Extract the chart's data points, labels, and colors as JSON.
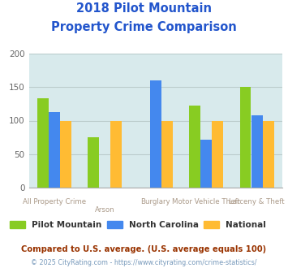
{
  "title_line1": "2018 Pilot Mountain",
  "title_line2": "Property Crime Comparison",
  "categories": [
    "All Property Crime",
    "Arson",
    "Burglary",
    "Motor Vehicle Theft",
    "Larceny & Theft"
  ],
  "pilot_mountain": [
    133,
    75,
    null,
    123,
    150
  ],
  "north_carolina": [
    113,
    null,
    160,
    72,
    108
  ],
  "national": [
    100,
    100,
    100,
    100,
    100
  ],
  "bar_colors": {
    "pilot_mountain": "#88cc22",
    "north_carolina": "#4488ee",
    "national": "#ffbb33"
  },
  "ylim": [
    0,
    200
  ],
  "yticks": [
    0,
    50,
    100,
    150,
    200
  ],
  "legend_labels": [
    "Pilot Mountain",
    "North Carolina",
    "National"
  ],
  "footnote1": "Compared to U.S. average. (U.S. average equals 100)",
  "footnote2": "© 2025 CityRating.com - https://www.cityrating.com/crime-statistics/",
  "title_color": "#2255cc",
  "footnote1_color": "#993300",
  "footnote2_color": "#7799bb",
  "plot_bg_color": "#d8eaec",
  "grid_color": "#bbcccc",
  "cat_label_top": [
    "All Property Crime",
    "",
    "Burglary",
    "Motor Vehicle Theft",
    "Larceny & Theft"
  ],
  "cat_label_bot": [
    "",
    "Arson",
    "",
    "",
    ""
  ],
  "cat_label_color": "#aa9988"
}
